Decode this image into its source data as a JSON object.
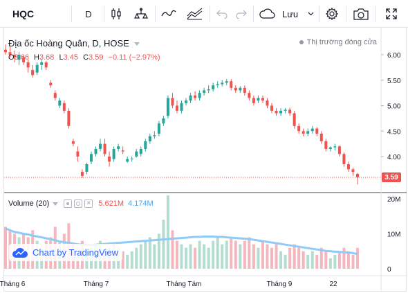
{
  "toolbar": {
    "symbol": "HQC",
    "interval": "D",
    "save_label": "Lưu",
    "icons": [
      "candles-icon",
      "indicators-icon",
      "line-drawing-icon",
      "compare-icon",
      "undo-icon",
      "redo-icon",
      "cloud-icon",
      "chevron-down-icon",
      "gear-icon",
      "camera-icon",
      "fullscreen-icon"
    ]
  },
  "legend": {
    "title": "Địa ốc Hoàng Quân, D, HOSE",
    "open_key": "O",
    "open_value": "3.66",
    "high_key": "H",
    "high_value": "3.68",
    "low_key": "L",
    "low_value": "3.45",
    "close_key": "C",
    "close_value": "3.59",
    "change": "−0.11 (−2.97%)",
    "market_status": "Thị trường đóng cửa"
  },
  "volume_legend": {
    "label": "Volume (20)",
    "vol_value": "5.621M",
    "ma_value": "4.174M"
  },
  "watermark": {
    "text": "Chart by TradingView"
  },
  "colors": {
    "up": "#26a69a",
    "down": "#ef5350",
    "vol_up": "#b3ddd0",
    "vol_down": "#f5b7bd",
    "vol_ma": "#90caf9",
    "text": "#131722",
    "muted": "#787b86"
  },
  "chart_data": {
    "type": "candlestick",
    "price_axis": {
      "ticks": [
        4.0,
        4.5,
        5.0,
        5.5,
        6.0
      ],
      "tick_labels": [
        "4.00",
        "4.50",
        "5.00",
        "5.50",
        "6.00"
      ],
      "range": [
        3.45,
        6.45
      ]
    },
    "last_price": 3.59,
    "last_price_label": "3.59",
    "volume_axis": {
      "ticks": [
        0,
        10,
        20
      ],
      "tick_labels": [
        "0",
        "10M",
        "20M"
      ],
      "range": [
        0,
        21
      ]
    },
    "time_axis": {
      "labels": [
        "Tháng 6",
        "Tháng 7",
        "Tháng Tám",
        "Tháng 9",
        "22"
      ]
    },
    "candles": [
      [
        6.1,
        6.2,
        6.0,
        6.05,
        "d",
        12
      ],
      [
        6.05,
        6.15,
        5.95,
        6.0,
        "d",
        11
      ],
      [
        6.0,
        6.08,
        5.85,
        5.95,
        "d",
        10
      ],
      [
        5.9,
        6.05,
        5.8,
        6.0,
        "u",
        9
      ],
      [
        5.95,
        6.0,
        5.8,
        5.85,
        "d",
        10
      ],
      [
        5.85,
        5.9,
        5.65,
        5.75,
        "d",
        9
      ],
      [
        5.7,
        5.8,
        5.55,
        5.6,
        "d",
        11
      ],
      [
        5.65,
        5.85,
        5.6,
        5.8,
        "u",
        8
      ],
      [
        5.8,
        5.9,
        5.7,
        5.85,
        "u",
        7
      ],
      [
        5.85,
        5.88,
        5.7,
        5.75,
        "d",
        8
      ],
      [
        5.45,
        5.5,
        5.35,
        5.4,
        "d",
        9
      ],
      [
        5.25,
        5.3,
        5.1,
        5.15,
        "d",
        12
      ],
      [
        5.0,
        5.15,
        4.95,
        5.1,
        "u",
        8
      ],
      [
        5.05,
        5.1,
        4.85,
        4.9,
        "d",
        10
      ],
      [
        4.9,
        4.95,
        4.55,
        4.6,
        "d",
        13
      ],
      [
        4.3,
        4.35,
        4.2,
        4.25,
        "d",
        7
      ],
      [
        4.1,
        4.2,
        3.9,
        4.0,
        "d",
        6
      ],
      [
        3.7,
        3.75,
        3.58,
        3.62,
        "d",
        8
      ],
      [
        3.7,
        3.88,
        3.65,
        3.85,
        "u",
        5
      ],
      [
        3.9,
        4.1,
        3.85,
        4.05,
        "u",
        6
      ],
      [
        4.05,
        4.2,
        4.0,
        4.15,
        "u",
        7
      ],
      [
        4.15,
        4.35,
        4.1,
        4.25,
        "u",
        8
      ],
      [
        4.25,
        4.35,
        4.0,
        4.05,
        "d",
        5
      ],
      [
        4.0,
        4.1,
        3.8,
        3.9,
        "d",
        6
      ],
      [
        3.95,
        4.2,
        3.9,
        4.15,
        "u",
        7
      ],
      [
        4.15,
        4.25,
        4.1,
        4.2,
        "u",
        6
      ],
      [
        4.1,
        4.2,
        4.05,
        4.12,
        "d",
        5
      ],
      [
        3.9,
        4.0,
        3.88,
        3.95,
        "u",
        4
      ],
      [
        3.95,
        4.0,
        3.9,
        3.96,
        "u",
        5
      ],
      [
        4.0,
        4.15,
        3.98,
        4.1,
        "u",
        6
      ],
      [
        4.05,
        4.2,
        4.0,
        4.15,
        "u",
        7
      ],
      [
        4.15,
        4.35,
        4.1,
        4.3,
        "u",
        8
      ],
      [
        4.3,
        4.45,
        4.25,
        4.4,
        "u",
        9
      ],
      [
        4.4,
        4.5,
        4.35,
        4.42,
        "u",
        7
      ],
      [
        4.45,
        4.7,
        4.4,
        4.65,
        "u",
        10
      ],
      [
        4.65,
        4.8,
        4.6,
        4.75,
        "u",
        14
      ],
      [
        4.8,
        5.2,
        4.75,
        5.15,
        "u",
        21
      ],
      [
        5.15,
        5.25,
        4.95,
        5.0,
        "d",
        11
      ],
      [
        5.0,
        5.1,
        4.85,
        4.9,
        "d",
        8
      ],
      [
        4.9,
        5.1,
        4.85,
        5.05,
        "u",
        7
      ],
      [
        5.05,
        5.15,
        5.0,
        5.1,
        "u",
        6
      ],
      [
        5.1,
        5.25,
        5.05,
        5.2,
        "u",
        7
      ],
      [
        5.2,
        5.28,
        5.1,
        5.15,
        "d",
        6
      ],
      [
        5.15,
        5.3,
        5.1,
        5.25,
        "u",
        8
      ],
      [
        5.25,
        5.35,
        5.2,
        5.3,
        "u",
        7
      ],
      [
        5.3,
        5.4,
        5.25,
        5.32,
        "u",
        6
      ],
      [
        5.32,
        5.45,
        5.28,
        5.4,
        "u",
        8
      ],
      [
        5.4,
        5.48,
        5.35,
        5.42,
        "u",
        9
      ],
      [
        5.42,
        5.5,
        5.38,
        5.45,
        "u",
        7
      ],
      [
        5.45,
        5.52,
        5.4,
        5.48,
        "u",
        8
      ],
      [
        5.48,
        5.52,
        5.3,
        5.35,
        "d",
        9
      ],
      [
        5.35,
        5.4,
        5.25,
        5.3,
        "d",
        8
      ],
      [
        5.3,
        5.38,
        5.25,
        5.35,
        "u",
        7
      ],
      [
        5.35,
        5.4,
        5.2,
        5.25,
        "d",
        8
      ],
      [
        5.25,
        5.3,
        5.1,
        5.15,
        "d",
        9
      ],
      [
        5.15,
        5.2,
        5.0,
        5.05,
        "d",
        7
      ],
      [
        5.1,
        5.2,
        5.05,
        5.15,
        "u",
        6
      ],
      [
        5.15,
        5.2,
        5.05,
        5.1,
        "d",
        8
      ],
      [
        5.1,
        5.15,
        4.95,
        5.0,
        "d",
        7
      ],
      [
        5.0,
        5.05,
        4.85,
        4.9,
        "d",
        6
      ],
      [
        4.9,
        4.95,
        4.8,
        4.85,
        "d",
        7
      ],
      [
        4.85,
        4.95,
        4.8,
        4.9,
        "u",
        5
      ],
      [
        4.9,
        4.95,
        4.85,
        4.92,
        "u",
        4
      ],
      [
        4.92,
        4.96,
        4.8,
        4.85,
        "d",
        6
      ],
      [
        4.85,
        4.9,
        4.55,
        4.6,
        "d",
        7
      ],
      [
        4.6,
        4.65,
        4.45,
        4.5,
        "d",
        6
      ],
      [
        4.5,
        4.55,
        4.4,
        4.45,
        "d",
        5
      ],
      [
        4.45,
        4.55,
        4.4,
        4.5,
        "u",
        4
      ],
      [
        4.5,
        4.6,
        4.45,
        4.55,
        "u",
        5
      ],
      [
        4.55,
        4.58,
        4.4,
        4.45,
        "d",
        4
      ],
      [
        4.45,
        4.5,
        4.25,
        4.3,
        "d",
        6
      ],
      [
        4.3,
        4.35,
        4.1,
        4.15,
        "d",
        5
      ],
      [
        4.15,
        4.2,
        4.1,
        4.18,
        "u",
        3
      ],
      [
        4.18,
        4.25,
        4.12,
        4.2,
        "u",
        4
      ],
      [
        4.2,
        4.22,
        4.0,
        4.05,
        "d",
        5
      ],
      [
        4.05,
        4.08,
        3.8,
        3.85,
        "d",
        6
      ],
      [
        3.85,
        3.9,
        3.7,
        3.75,
        "d",
        5
      ],
      [
        3.75,
        3.78,
        3.62,
        3.7,
        "d",
        4
      ],
      [
        3.66,
        3.68,
        3.45,
        3.59,
        "d",
        6
      ]
    ],
    "volume_ma": [
      11.5,
      11,
      10.5,
      10.3,
      10,
      9.8,
      9.5,
      9.2,
      9,
      8.7,
      8.5,
      8.1,
      7.8,
      7.6,
      7.4,
      7.2,
      7,
      6.9,
      6.8,
      6.8,
      6.9,
      7,
      7.1,
      7.2,
      7.3,
      7.4,
      7.5,
      7.6,
      7.7,
      7.8,
      7.9,
      8,
      8.1,
      8.2,
      8.3,
      8.4,
      8.5,
      8.6,
      8.7,
      8.8,
      8.9,
      9,
      9.1,
      9.1,
      9.2,
      9.2,
      9.2,
      9.1,
      9.1,
      9,
      8.9,
      8.8,
      8.7,
      8.6,
      8.5,
      8.3,
      8.1,
      7.9,
      7.7,
      7.5,
      7.3,
      7.1,
      6.9,
      6.7,
      6.5,
      6.3,
      6.1,
      5.9,
      5.7,
      5.5,
      5.3,
      5.1,
      5,
      4.9,
      4.8,
      4.7,
      4.6,
      4.5,
      4.2
    ]
  }
}
